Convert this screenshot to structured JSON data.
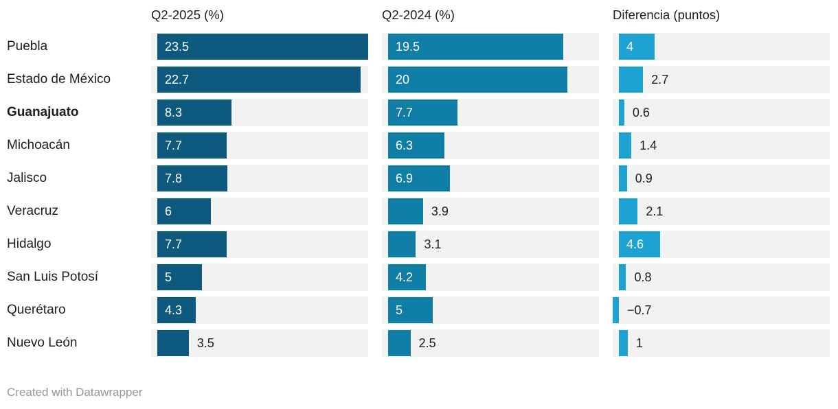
{
  "columns": [
    {
      "header": "Q2-2025 (%)",
      "color": "#0d5a7e"
    },
    {
      "header": "Q2-2024 (%)",
      "color": "#0f7da5"
    },
    {
      "header": "Diferencia (puntos)",
      "color": "#1da2d3"
    }
  ],
  "rows": [
    {
      "label": "Puebla",
      "bold": false,
      "cells": [
        {
          "value": 23.5,
          "label": "23.5"
        },
        {
          "value": 19.5,
          "label": "19.5"
        },
        {
          "value": 4,
          "label": "4"
        }
      ]
    },
    {
      "label": "Estado de México",
      "bold": false,
      "cells": [
        {
          "value": 22.7,
          "label": "22.7"
        },
        {
          "value": 20,
          "label": "20"
        },
        {
          "value": 2.7,
          "label": "2.7"
        }
      ]
    },
    {
      "label": "Guanajuato",
      "bold": true,
      "cells": [
        {
          "value": 8.3,
          "label": "8.3"
        },
        {
          "value": 7.7,
          "label": "7.7"
        },
        {
          "value": 0.6,
          "label": "0.6"
        }
      ]
    },
    {
      "label": "Michoacán",
      "bold": false,
      "cells": [
        {
          "value": 7.7,
          "label": "7.7"
        },
        {
          "value": 6.3,
          "label": "6.3"
        },
        {
          "value": 1.4,
          "label": "1.4"
        }
      ]
    },
    {
      "label": "Jalisco",
      "bold": false,
      "cells": [
        {
          "value": 7.8,
          "label": "7.8"
        },
        {
          "value": 6.9,
          "label": "6.9"
        },
        {
          "value": 0.9,
          "label": "0.9"
        }
      ]
    },
    {
      "label": "Veracruz",
      "bold": false,
      "cells": [
        {
          "value": 6,
          "label": "6"
        },
        {
          "value": 3.9,
          "label": "3.9"
        },
        {
          "value": 2.1,
          "label": "2.1"
        }
      ]
    },
    {
      "label": "Hidalgo",
      "bold": false,
      "cells": [
        {
          "value": 7.7,
          "label": "7.7"
        },
        {
          "value": 3.1,
          "label": "3.1"
        },
        {
          "value": 4.6,
          "label": "4.6"
        }
      ]
    },
    {
      "label": "San Luis Potosí",
      "bold": false,
      "cells": [
        {
          "value": 5,
          "label": "5"
        },
        {
          "value": 4.2,
          "label": "4.2"
        },
        {
          "value": 0.8,
          "label": "0.8"
        }
      ]
    },
    {
      "label": "Querétaro",
      "bold": false,
      "cells": [
        {
          "value": 4.3,
          "label": "4.3"
        },
        {
          "value": 5,
          "label": "5"
        },
        {
          "value": -0.7,
          "label": "−0.7"
        }
      ]
    },
    {
      "label": "Nuevo León",
      "bold": false,
      "cells": [
        {
          "value": 3.5,
          "label": "3.5"
        },
        {
          "value": 2.5,
          "label": "2.5"
        },
        {
          "value": 1,
          "label": "1"
        }
      ]
    }
  ],
  "footer": {
    "text": "Created with Datawrapper"
  },
  "styles": {
    "track_color": "#f2f2f2",
    "text_color": "#1d1d1d",
    "footer_color": "#979797"
  },
  "chart_data": {
    "type": "bar",
    "orientation": "horizontal",
    "categories": [
      "Puebla",
      "Estado de México",
      "Guanajuato",
      "Michoacán",
      "Jalisco",
      "Veracruz",
      "Hidalgo",
      "San Luis Potosí",
      "Querétaro",
      "Nuevo León"
    ],
    "series": [
      {
        "name": "Q2-2025 (%)",
        "color": "#0d5a7e",
        "values": [
          23.5,
          22.7,
          8.3,
          7.7,
          7.8,
          6,
          7.7,
          5,
          4.3,
          3.5
        ]
      },
      {
        "name": "Q2-2024 (%)",
        "color": "#0f7da5",
        "values": [
          19.5,
          20,
          7.7,
          6.3,
          6.9,
          3.9,
          3.1,
          4.2,
          5,
          2.5
        ]
      },
      {
        "name": "Diferencia (puntos)",
        "color": "#1da2d3",
        "values": [
          4,
          2.7,
          0.6,
          1.4,
          0.9,
          2.1,
          4.6,
          0.8,
          -0.7,
          1
        ]
      }
    ],
    "title": "",
    "xlabel": "",
    "ylabel": "",
    "xlim": [
      0,
      23.5
    ],
    "grid": false,
    "legend_position": "column-headers",
    "highlighted_category": "Guanajuato",
    "annotations": [
      "Created with Datawrapper"
    ]
  }
}
